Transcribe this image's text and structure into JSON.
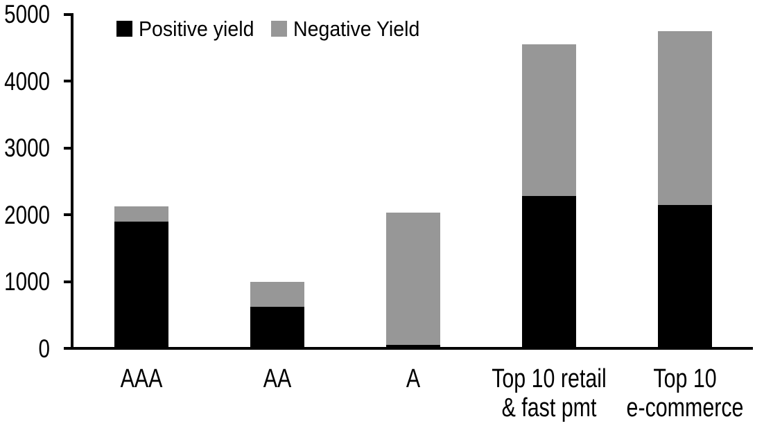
{
  "chart_data": {
    "type": "bar",
    "stacked": true,
    "categories": [
      "AAA",
      "AA",
      "A",
      "Top 10 retail\n& fast pmt",
      "Top 10\ne-commerce"
    ],
    "series": [
      {
        "name": "Positive yield",
        "color": "#000000",
        "values": [
          1900,
          620,
          50,
          2280,
          2150
        ]
      },
      {
        "name": "Negative Yield",
        "color": "#979797",
        "values": [
          220,
          380,
          1980,
          2270,
          2600
        ]
      }
    ],
    "totals": [
      2120,
      1000,
      2030,
      4550,
      4750
    ],
    "ylim": [
      0,
      5000
    ],
    "yticks": [
      0,
      1000,
      2000,
      3000,
      4000,
      5000
    ],
    "legend_position": "top",
    "grid": false,
    "axis_color": "#000000",
    "background_color": "#ffffff"
  }
}
